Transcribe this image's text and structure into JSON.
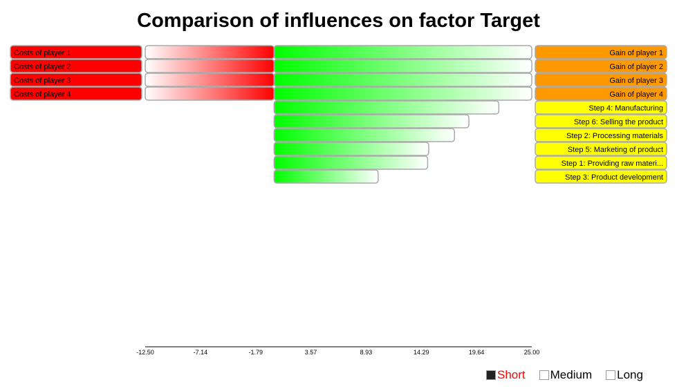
{
  "chart_data": {
    "type": "bar",
    "title": "Comparison of influences on factor Target",
    "orientation": "horizontal",
    "xlim": [
      -12.5,
      25.0
    ],
    "x_ticks": [
      "-12.50",
      "-7.14",
      "-1.79",
      "3.57",
      "8.93",
      "14.29",
      "19.64",
      "25.00"
    ],
    "negative_labels": [
      "Costs of player 1",
      "Costs of player 2",
      "Costs of player 3",
      "Costs of player 4"
    ],
    "positive_labels": [
      "Gain of player 1",
      "Gain of player 2",
      "Gain of player 3",
      "Gain of player 4",
      "Step 4: Manufacturing",
      "Step 6: Selling the product",
      "Step 2: Processing materials",
      "Step 5: Marketing of product",
      "Step 1: Providing raw materi...",
      "Step 3: Product development"
    ],
    "negative_values": [
      -12.5,
      -12.5,
      -12.5,
      -12.5
    ],
    "positive_values": [
      25.0,
      25.0,
      25.0,
      25.0,
      21.8,
      18.9,
      17.5,
      15.0,
      14.9,
      10.1
    ],
    "colors": {
      "cost_label": "#ff0000",
      "gain_label": "#ff9900",
      "step_label": "#ffff00",
      "positive_bar": "#00ff00",
      "negative_bar": "#ff0000"
    }
  },
  "legend": {
    "items": [
      {
        "label": "Short",
        "active": true,
        "swatch": "#222222"
      },
      {
        "label": "Medium",
        "active": false,
        "swatch": "#ffffff"
      },
      {
        "label": "Long",
        "active": false,
        "swatch": "#ffffff"
      }
    ]
  }
}
